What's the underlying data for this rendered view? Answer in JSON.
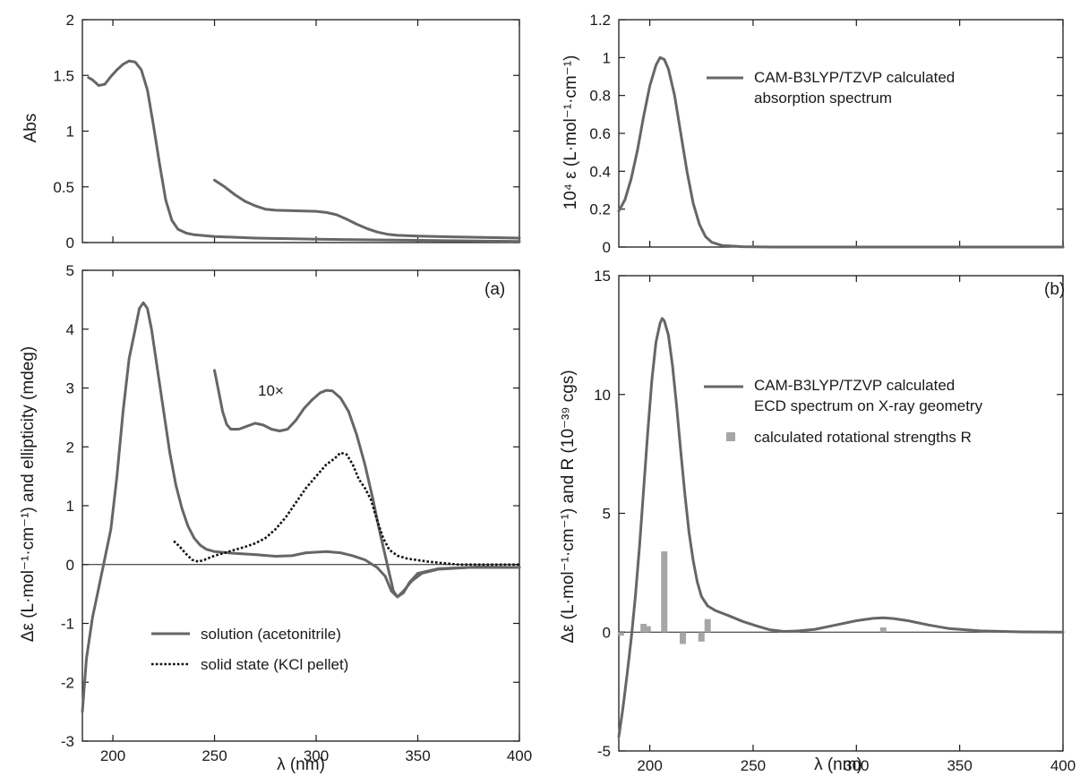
{
  "chart_data": [
    {
      "id": "abs",
      "type": "line",
      "ylabel": "Abs",
      "xlim": [
        185,
        400
      ],
      "ylim": [
        0,
        2
      ],
      "xticks": [
        200,
        250,
        300,
        350,
        400
      ],
      "yticks": [
        0,
        0.5,
        1,
        1.5,
        2
      ],
      "ytick_labels": [
        "0",
        "0.5",
        "1",
        "1.5",
        "2"
      ],
      "zero_line": false,
      "series": [
        {
          "style": "solid",
          "points": [
            [
              188,
              1.48
            ],
            [
              190,
              1.46
            ],
            [
              193,
              1.41
            ],
            [
              196,
              1.42
            ],
            [
              199,
              1.49
            ],
            [
              202,
              1.55
            ],
            [
              205,
              1.6
            ],
            [
              208,
              1.63
            ],
            [
              211,
              1.62
            ],
            [
              214,
              1.55
            ],
            [
              217,
              1.37
            ],
            [
              220,
              1.05
            ],
            [
              223,
              0.7
            ],
            [
              226,
              0.38
            ],
            [
              229,
              0.2
            ],
            [
              232,
              0.12
            ],
            [
              236,
              0.085
            ],
            [
              240,
              0.07
            ],
            [
              250,
              0.055
            ],
            [
              270,
              0.04
            ],
            [
              300,
              0.03
            ],
            [
              350,
              0.02
            ],
            [
              400,
              0.01
            ]
          ]
        },
        {
          "style": "solid",
          "points": [
            [
              250,
              0.56
            ],
            [
              255,
              0.5
            ],
            [
              260,
              0.43
            ],
            [
              265,
              0.37
            ],
            [
              270,
              0.33
            ],
            [
              275,
              0.3
            ],
            [
              280,
              0.29
            ],
            [
              290,
              0.285
            ],
            [
              300,
              0.28
            ],
            [
              305,
              0.27
            ],
            [
              310,
              0.25
            ],
            [
              315,
              0.21
            ],
            [
              320,
              0.165
            ],
            [
              325,
              0.125
            ],
            [
              330,
              0.095
            ],
            [
              335,
              0.075
            ],
            [
              340,
              0.065
            ],
            [
              350,
              0.058
            ],
            [
              370,
              0.05
            ],
            [
              400,
              0.04
            ]
          ]
        }
      ]
    },
    {
      "id": "eps",
      "type": "line",
      "ylabel": "10⁴ ε (L·mol⁻¹·cm⁻¹)",
      "xlim": [
        185,
        400
      ],
      "ylim": [
        0,
        1.2
      ],
      "xticks": [
        200,
        250,
        300,
        350,
        400
      ],
      "yticks": [
        0,
        0.2,
        0.4,
        0.6,
        0.8,
        1,
        1.2
      ],
      "ytick_labels": [
        "0",
        "0.2",
        "0.4",
        "0.6",
        "0.8",
        "1",
        "1.2"
      ],
      "zero_line": false,
      "legend": [
        "CAM-B3LYP/TZVP calculated",
        "absorption spectrum"
      ],
      "series": [
        {
          "style": "solid",
          "points": [
            [
              185,
              0.19
            ],
            [
              188,
              0.25
            ],
            [
              191,
              0.36
            ],
            [
              194,
              0.51
            ],
            [
              197,
              0.69
            ],
            [
              200,
              0.85
            ],
            [
              203,
              0.96
            ],
            [
              205,
              1.0
            ],
            [
              207,
              0.99
            ],
            [
              209,
              0.94
            ],
            [
              212,
              0.8
            ],
            [
              215,
              0.6
            ],
            [
              218,
              0.4
            ],
            [
              221,
              0.23
            ],
            [
              224,
              0.12
            ],
            [
              227,
              0.055
            ],
            [
              230,
              0.025
            ],
            [
              235,
              0.008
            ],
            [
              245,
              0.002
            ],
            [
              260,
              0.0
            ],
            [
              400,
              0.0
            ]
          ]
        }
      ]
    },
    {
      "id": "cd-a",
      "type": "line",
      "panel_label": "(a)",
      "xlabel": "λ (nm)",
      "ylabel": "Δε (L·mol⁻¹·cm⁻¹) and ellipticity (mdeg)",
      "xlim": [
        185,
        400
      ],
      "ylim": [
        -3,
        5
      ],
      "xticks": [
        200,
        250,
        300,
        350,
        400
      ],
      "yticks": [
        -3,
        -2,
        -1,
        0,
        1,
        2,
        3,
        4,
        5
      ],
      "ytick_labels": [
        "-3",
        "-2",
        "-1",
        "0",
        "1",
        "2",
        "3",
        "4",
        "5"
      ],
      "zero_line": true,
      "annotation": "10×",
      "legend": [
        "solution (acetonitrile)",
        "solid state (KCl pellet)"
      ],
      "series": [
        {
          "name": "solution (acetonitrile)",
          "style": "solid",
          "points": [
            [
              185,
              -2.5
            ],
            [
              187,
              -1.6
            ],
            [
              190,
              -0.9
            ],
            [
              193,
              -0.4
            ],
            [
              196,
              0.1
            ],
            [
              199,
              0.6
            ],
            [
              202,
              1.5
            ],
            [
              205,
              2.6
            ],
            [
              208,
              3.5
            ],
            [
              211,
              4.0
            ],
            [
              213,
              4.35
            ],
            [
              215,
              4.45
            ],
            [
              217,
              4.35
            ],
            [
              219,
              4.0
            ],
            [
              222,
              3.3
            ],
            [
              225,
              2.6
            ],
            [
              228,
              1.9
            ],
            [
              231,
              1.35
            ],
            [
              234,
              0.95
            ],
            [
              237,
              0.65
            ],
            [
              240,
              0.45
            ],
            [
              243,
              0.33
            ],
            [
              246,
              0.26
            ],
            [
              250,
              0.22
            ],
            [
              260,
              0.19
            ],
            [
              270,
              0.17
            ],
            [
              280,
              0.14
            ],
            [
              288,
              0.15
            ],
            [
              295,
              0.2
            ],
            [
              305,
              0.22
            ],
            [
              312,
              0.2
            ],
            [
              318,
              0.15
            ],
            [
              324,
              0.08
            ],
            [
              330,
              -0.05
            ],
            [
              334,
              -0.2
            ],
            [
              337,
              -0.45
            ],
            [
              340,
              -0.55
            ],
            [
              343,
              -0.45
            ],
            [
              347,
              -0.28
            ],
            [
              352,
              -0.15
            ],
            [
              360,
              -0.08
            ],
            [
              375,
              -0.05
            ],
            [
              400,
              -0.05
            ]
          ]
        },
        {
          "name": "10×",
          "style": "solid",
          "points": [
            [
              250,
              3.3
            ],
            [
              252,
              2.95
            ],
            [
              254,
              2.6
            ],
            [
              256,
              2.38
            ],
            [
              258,
              2.3
            ],
            [
              262,
              2.3
            ],
            [
              266,
              2.35
            ],
            [
              270,
              2.4
            ],
            [
              274,
              2.37
            ],
            [
              278,
              2.3
            ],
            [
              282,
              2.27
            ],
            [
              286,
              2.3
            ],
            [
              290,
              2.45
            ],
            [
              294,
              2.65
            ],
            [
              298,
              2.8
            ],
            [
              302,
              2.92
            ],
            [
              305,
              2.96
            ],
            [
              308,
              2.95
            ],
            [
              312,
              2.83
            ],
            [
              316,
              2.6
            ],
            [
              320,
              2.2
            ],
            [
              324,
              1.7
            ],
            [
              328,
              1.1
            ],
            [
              331,
              0.6
            ],
            [
              334,
              0.15
            ],
            [
              336,
              -0.15
            ],
            [
              338,
              -0.45
            ],
            [
              340,
              -0.55
            ],
            [
              343,
              -0.48
            ],
            [
              346,
              -0.3
            ],
            [
              350,
              -0.15
            ],
            [
              360,
              -0.07
            ],
            [
              380,
              -0.04
            ],
            [
              400,
              -0.05
            ]
          ]
        },
        {
          "name": "solid state (KCl pellet)",
          "style": "dotted",
          "points": [
            [
              230,
              0.4
            ],
            [
              233,
              0.3
            ],
            [
              236,
              0.18
            ],
            [
              239,
              0.08
            ],
            [
              242,
              0.05
            ],
            [
              245,
              0.08
            ],
            [
              250,
              0.15
            ],
            [
              255,
              0.2
            ],
            [
              260,
              0.25
            ],
            [
              265,
              0.3
            ],
            [
              270,
              0.36
            ],
            [
              275,
              0.45
            ],
            [
              280,
              0.6
            ],
            [
              285,
              0.8
            ],
            [
              290,
              1.05
            ],
            [
              295,
              1.3
            ],
            [
              300,
              1.5
            ],
            [
              305,
              1.7
            ],
            [
              309,
              1.8
            ],
            [
              312,
              1.9
            ],
            [
              315,
              1.87
            ],
            [
              318,
              1.7
            ],
            [
              321,
              1.45
            ],
            [
              324,
              1.3
            ],
            [
              327,
              1.1
            ],
            [
              330,
              0.75
            ],
            [
              333,
              0.45
            ],
            [
              336,
              0.25
            ],
            [
              340,
              0.15
            ],
            [
              345,
              0.1
            ],
            [
              355,
              0.05
            ],
            [
              370,
              0.0
            ],
            [
              385,
              0.0
            ],
            [
              400,
              0.0
            ]
          ]
        }
      ]
    },
    {
      "id": "cd-b",
      "type": "line",
      "panel_label": "(b)",
      "xlabel": "λ (nm)",
      "ylabel": "Δε (L·mol⁻¹·cm⁻¹) and R (10⁻³⁹ cgs)",
      "xlim": [
        185,
        400
      ],
      "ylim": [
        -5,
        15
      ],
      "xticks": [
        200,
        250,
        300,
        350,
        400
      ],
      "yticks": [
        -5,
        0,
        5,
        10,
        15
      ],
      "ytick_labels": [
        "-5",
        "0",
        "5",
        "10",
        "15"
      ],
      "zero_line": true,
      "legend": [
        "CAM-B3LYP/TZVP calculated",
        "ECD spectrum on X-ray geometry",
        "calculated rotational strengths R"
      ],
      "series": [
        {
          "name": "CAM-B3LYP/TZVP calculated ECD spectrum on X-ray geometry",
          "style": "solid",
          "points": [
            [
              185,
              -4.4
            ],
            [
              187,
              -3.2
            ],
            [
              189,
              -1.8
            ],
            [
              191,
              -0.3
            ],
            [
              193,
              1.5
            ],
            [
              195,
              3.6
            ],
            [
              197,
              6.0
            ],
            [
              199,
              8.4
            ],
            [
              201,
              10.6
            ],
            [
              203,
              12.2
            ],
            [
              205,
              13.0
            ],
            [
              206,
              13.2
            ],
            [
              207,
              13.1
            ],
            [
              209,
              12.5
            ],
            [
              211,
              11.2
            ],
            [
              213,
              9.5
            ],
            [
              215,
              7.6
            ],
            [
              217,
              5.8
            ],
            [
              219,
              4.2
            ],
            [
              221,
              3.0
            ],
            [
              223,
              2.1
            ],
            [
              225,
              1.5
            ],
            [
              228,
              1.1
            ],
            [
              232,
              0.9
            ],
            [
              238,
              0.7
            ],
            [
              245,
              0.45
            ],
            [
              252,
              0.25
            ],
            [
              258,
              0.1
            ],
            [
              265,
              0.03
            ],
            [
              272,
              0.05
            ],
            [
              280,
              0.12
            ],
            [
              290,
              0.3
            ],
            [
              300,
              0.48
            ],
            [
              308,
              0.58
            ],
            [
              313,
              0.6
            ],
            [
              318,
              0.57
            ],
            [
              325,
              0.48
            ],
            [
              335,
              0.3
            ],
            [
              345,
              0.15
            ],
            [
              360,
              0.05
            ],
            [
              380,
              0.01
            ],
            [
              400,
              0.0
            ]
          ]
        }
      ],
      "bars": [
        {
          "name": "calculated rotational strengths R",
          "points": [
            [
              186,
              -0.15
            ],
            [
              197,
              0.35
            ],
            [
              199,
              0.25
            ],
            [
              207,
              3.4
            ],
            [
              216,
              -0.5
            ],
            [
              225,
              -0.4
            ],
            [
              228,
              0.55
            ],
            [
              313,
              0.2
            ]
          ]
        }
      ]
    }
  ]
}
